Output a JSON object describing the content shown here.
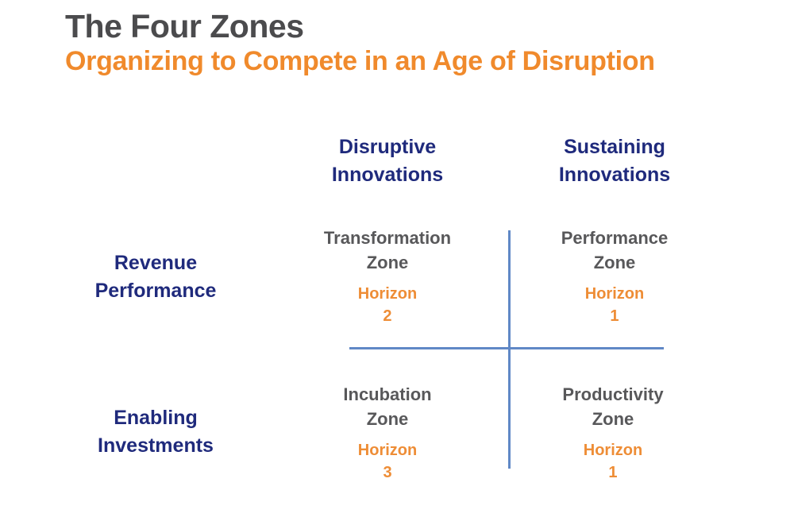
{
  "title": "The Four Zones",
  "subtitle": "Organizing to Compete in an Age of Disruption",
  "columns": [
    {
      "line1": "Disruptive",
      "line2": "Innovations"
    },
    {
      "line1": "Sustaining",
      "line2": "Innovations"
    }
  ],
  "rows": [
    {
      "line1": "Revenue",
      "line2": "Performance"
    },
    {
      "line1": "Enabling",
      "line2": "Investments"
    }
  ],
  "zones": [
    {
      "name1": "Transformation",
      "name2": "Zone",
      "horizon_label": "Horizon",
      "horizon": "2"
    },
    {
      "name1": "Performance",
      "name2": "Zone",
      "horizon_label": "Horizon",
      "horizon": "1"
    },
    {
      "name1": "Incubation",
      "name2": "Zone",
      "horizon_label": "Horizon",
      "horizon": "3"
    },
    {
      "name1": "Productivity",
      "name2": "Zone",
      "horizon_label": "Horizon",
      "horizon": "1"
    }
  ],
  "colors": {
    "title": "#4b4b4d",
    "subtitle": "#f08a2c",
    "headers": "#1f2a7c",
    "zones": "#58585a",
    "horizons": "#ee8d36",
    "axes": "#6088c6"
  }
}
